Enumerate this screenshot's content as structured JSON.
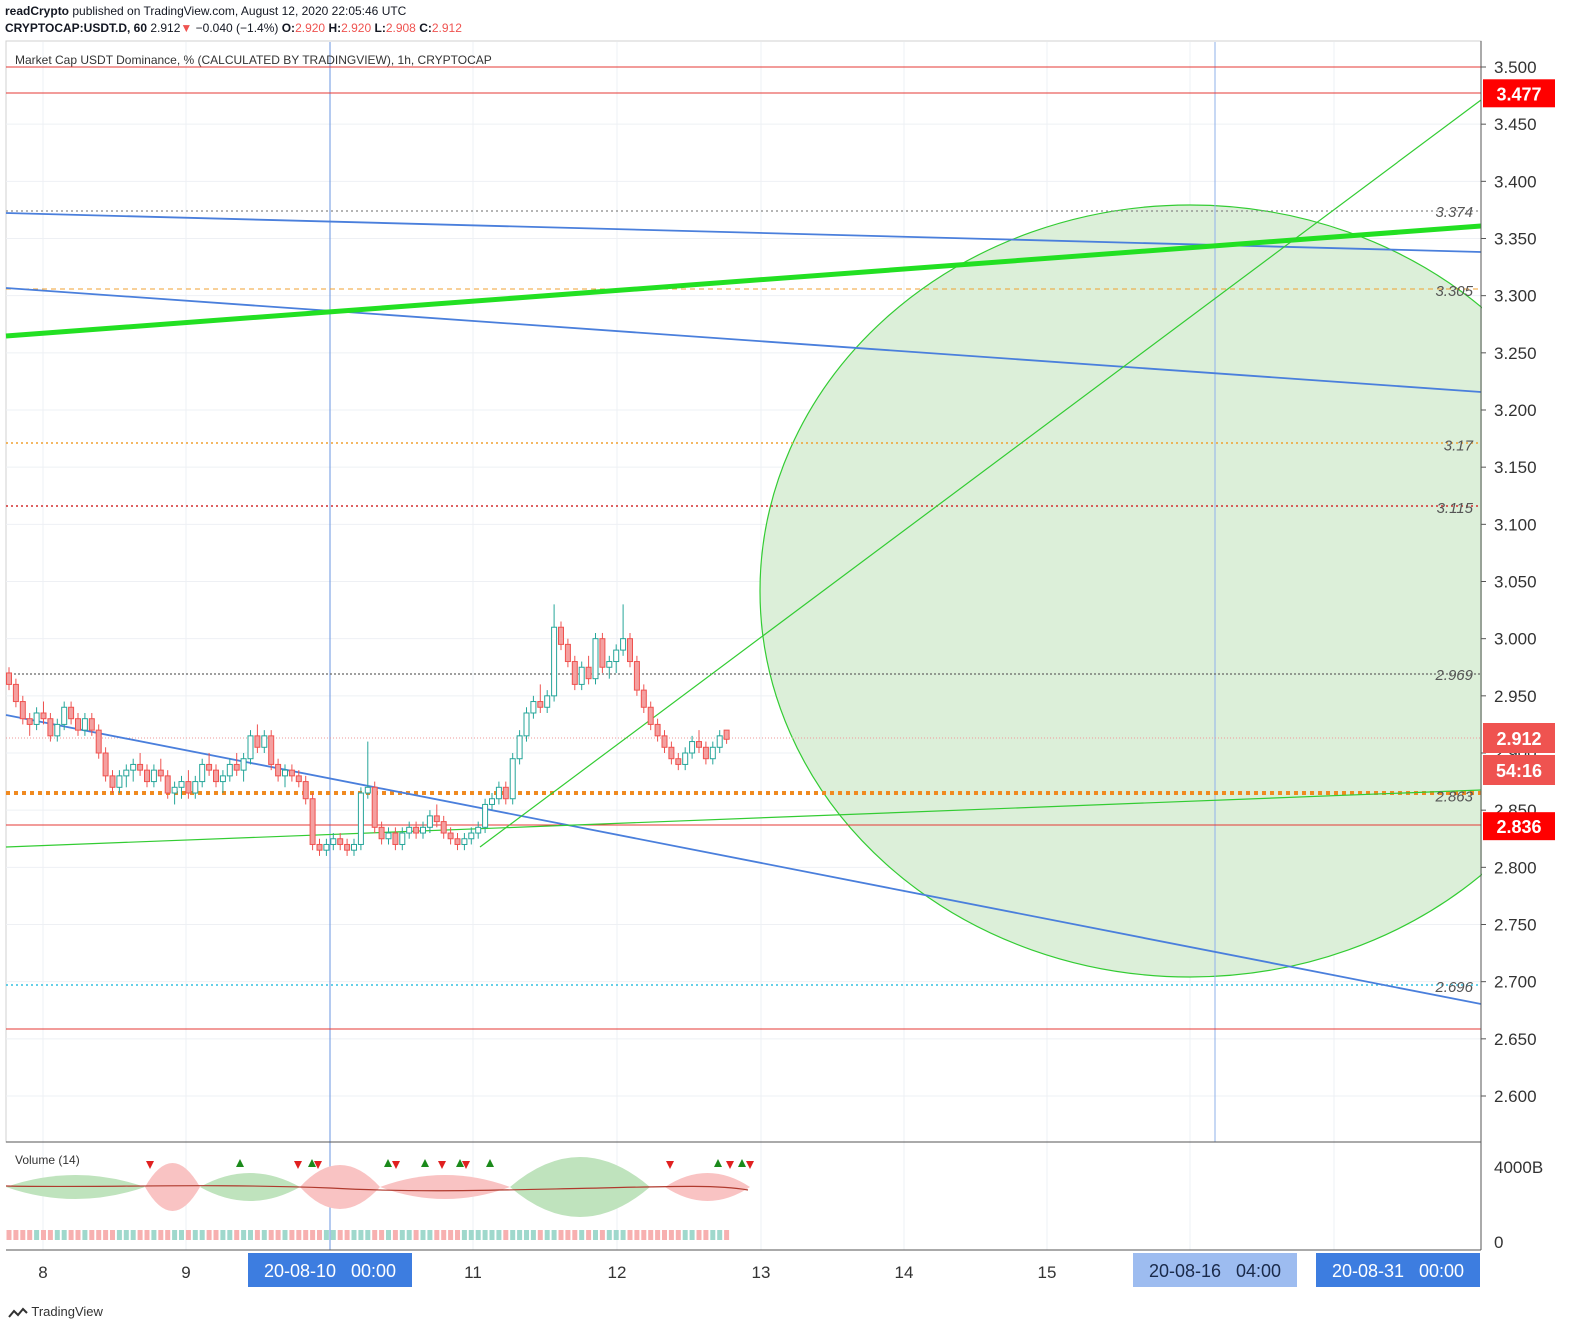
{
  "header": {
    "line1_user": "readCrypto",
    "line1_rest": " published on TradingView.com, August 12, 2020 22:05:46 UTC",
    "symbol": "CRYPTOCAP:USDT.D, 60",
    "last": "2.912",
    "arrow": "▼",
    "change": "−0.040 (−1.4%)",
    "o_label": "O:",
    "o": "2.920",
    "h_label": "H:",
    "h": "2.920",
    "l_label": "L:",
    "l": "2.908",
    "c_label": "C:",
    "c": "2.912"
  },
  "chart_title": "Market Cap USDT Dominance, % (CALCULATED BY TRADINGVIEW), 1h, CRYPTOCAP",
  "colors": {
    "up": "#26a69a",
    "down": "#ef5350",
    "blue": "#4a7fdc",
    "green": "#33cc33",
    "bright_green": "#22e022",
    "red": "#e53935",
    "orange": "#f0a030",
    "dotted_red": "#d32f2f",
    "cyan": "#33c0e0",
    "gray": "#888888"
  },
  "chart_data": {
    "type": "candlestick",
    "title": "Market Cap USDT Dominance, % (CALCULATED BY TRADINGVIEW), 1h, CRYPTOCAP",
    "ylim": [
      2.56,
      3.52
    ],
    "xlim": [
      "2020-08-07 18:00",
      "2020-08-17 10:00"
    ],
    "price_ticks": [
      "3.500",
      "3.450",
      "3.400",
      "3.350",
      "3.300",
      "3.250",
      "3.200",
      "3.150",
      "3.100",
      "3.050",
      "3.000",
      "2.950",
      "2.900",
      "2.850",
      "2.800",
      "2.750",
      "2.700",
      "2.650",
      "2.600"
    ],
    "time_ticks": [
      "8",
      "9",
      "11",
      "12",
      "13",
      "14",
      "15"
    ],
    "last_price": 2.912,
    "countdown": "54:16",
    "date_tags": [
      "20-08-10   00:00",
      "20-08-16   04:00",
      "20-08-31   00:00"
    ],
    "price_tags": [
      {
        "label": "3.477",
        "value": 3.477
      },
      {
        "label": "2.836",
        "value": 2.836
      }
    ],
    "levels": [
      {
        "label": "3.374",
        "value": 3.374,
        "style": "dotted-gray"
      },
      {
        "label": "3.305",
        "value": 3.305,
        "style": "dashed-orange"
      },
      {
        "label": "3.17",
        "value": 3.17,
        "style": "dotted-orange"
      },
      {
        "label": "3.115",
        "value": 3.115,
        "style": "dotted-red"
      },
      {
        "label": "2.969",
        "value": 2.969,
        "style": "dotted-gray"
      },
      {
        "label": "2.863",
        "value": 2.863,
        "style": "thick-dotted-orange"
      },
      {
        "label": "2.696",
        "value": 2.696,
        "style": "dotted-cyan"
      }
    ],
    "red_lines": [
      3.5,
      3.477,
      2.836,
      2.659
    ],
    "candles": [
      [
        2.97,
        2.975,
        2.955,
        2.96
      ],
      [
        2.96,
        2.965,
        2.94,
        2.945
      ],
      [
        2.945,
        2.95,
        2.925,
        2.93
      ],
      [
        2.93,
        2.935,
        2.915,
        2.925
      ],
      [
        2.925,
        2.94,
        2.92,
        2.935
      ],
      [
        2.935,
        2.945,
        2.925,
        2.93
      ],
      [
        2.93,
        2.935,
        2.91,
        2.915
      ],
      [
        2.915,
        2.93,
        2.91,
        2.925
      ],
      [
        2.925,
        2.945,
        2.92,
        2.94
      ],
      [
        2.94,
        2.945,
        2.925,
        2.93
      ],
      [
        2.93,
        2.935,
        2.915,
        2.92
      ],
      [
        2.92,
        2.935,
        2.915,
        2.93
      ],
      [
        2.93,
        2.935,
        2.915,
        2.92
      ],
      [
        2.92,
        2.925,
        2.895,
        2.9
      ],
      [
        2.9,
        2.905,
        2.875,
        2.88
      ],
      [
        2.88,
        2.885,
        2.865,
        2.87
      ],
      [
        2.87,
        2.885,
        2.865,
        2.88
      ],
      [
        2.88,
        2.89,
        2.87,
        2.885
      ],
      [
        2.885,
        2.895,
        2.875,
        2.89
      ],
      [
        2.89,
        2.9,
        2.88,
        2.885
      ],
      [
        2.885,
        2.89,
        2.87,
        2.875
      ],
      [
        2.875,
        2.89,
        2.87,
        2.885
      ],
      [
        2.885,
        2.895,
        2.875,
        2.88
      ],
      [
        2.88,
        2.885,
        2.86,
        2.865
      ],
      [
        2.865,
        2.875,
        2.855,
        2.87
      ],
      [
        2.87,
        2.88,
        2.86,
        2.875
      ],
      [
        2.875,
        2.885,
        2.86,
        2.865
      ],
      [
        2.865,
        2.88,
        2.86,
        2.875
      ],
      [
        2.875,
        2.895,
        2.87,
        2.89
      ],
      [
        2.89,
        2.9,
        2.88,
        2.885
      ],
      [
        2.885,
        2.89,
        2.87,
        2.875
      ],
      [
        2.875,
        2.885,
        2.865,
        2.88
      ],
      [
        2.88,
        2.895,
        2.875,
        2.89
      ],
      [
        2.89,
        2.9,
        2.88,
        2.885
      ],
      [
        2.885,
        2.9,
        2.875,
        2.895
      ],
      [
        2.895,
        2.92,
        2.89,
        2.915
      ],
      [
        2.915,
        2.925,
        2.9,
        2.905
      ],
      [
        2.905,
        2.92,
        2.9,
        2.915
      ],
      [
        2.915,
        2.92,
        2.885,
        2.89
      ],
      [
        2.89,
        2.895,
        2.875,
        2.88
      ],
      [
        2.88,
        2.89,
        2.87,
        2.885
      ],
      [
        2.885,
        2.89,
        2.875,
        2.88
      ],
      [
        2.88,
        2.885,
        2.87,
        2.875
      ],
      [
        2.875,
        2.88,
        2.855,
        2.86
      ],
      [
        2.86,
        2.865,
        2.815,
        2.82
      ],
      [
        2.82,
        2.825,
        2.81,
        2.815
      ],
      [
        2.815,
        2.825,
        2.81,
        2.82
      ],
      [
        2.82,
        2.83,
        2.815,
        2.825
      ],
      [
        2.825,
        2.83,
        2.815,
        2.82
      ],
      [
        2.82,
        2.825,
        2.81,
        2.815
      ],
      [
        2.815,
        2.825,
        2.81,
        2.82
      ],
      [
        2.82,
        2.87,
        2.815,
        2.865
      ],
      [
        2.865,
        2.91,
        2.86,
        2.87
      ],
      [
        2.87,
        2.875,
        2.83,
        2.835
      ],
      [
        2.835,
        2.84,
        2.82,
        2.825
      ],
      [
        2.825,
        2.835,
        2.82,
        2.83
      ],
      [
        2.83,
        2.835,
        2.815,
        2.82
      ],
      [
        2.82,
        2.835,
        2.815,
        2.83
      ],
      [
        2.83,
        2.84,
        2.825,
        2.835
      ],
      [
        2.835,
        2.84,
        2.825,
        2.83
      ],
      [
        2.83,
        2.84,
        2.825,
        2.835
      ],
      [
        2.835,
        2.85,
        2.83,
        2.845
      ],
      [
        2.845,
        2.855,
        2.835,
        2.84
      ],
      [
        2.84,
        2.845,
        2.825,
        2.83
      ],
      [
        2.83,
        2.835,
        2.82,
        2.825
      ],
      [
        2.825,
        2.83,
        2.815,
        2.82
      ],
      [
        2.82,
        2.83,
        2.815,
        2.825
      ],
      [
        2.825,
        2.835,
        2.82,
        2.83
      ],
      [
        2.83,
        2.84,
        2.825,
        2.835
      ],
      [
        2.835,
        2.86,
        2.83,
        2.855
      ],
      [
        2.855,
        2.865,
        2.85,
        2.86
      ],
      [
        2.86,
        2.875,
        2.855,
        2.87
      ],
      [
        2.87,
        2.875,
        2.855,
        2.86
      ],
      [
        2.86,
        2.9,
        2.855,
        2.895
      ],
      [
        2.895,
        2.92,
        2.89,
        2.915
      ],
      [
        2.915,
        2.94,
        2.91,
        2.935
      ],
      [
        2.935,
        2.95,
        2.93,
        2.945
      ],
      [
        2.945,
        2.96,
        2.935,
        2.94
      ],
      [
        2.94,
        2.955,
        2.935,
        2.95
      ],
      [
        2.95,
        3.03,
        2.945,
        3.01
      ],
      [
        3.01,
        3.015,
        2.99,
        2.995
      ],
      [
        2.995,
        3.0,
        2.975,
        2.98
      ],
      [
        2.98,
        2.985,
        2.955,
        2.96
      ],
      [
        2.96,
        2.98,
        2.955,
        2.975
      ],
      [
        2.975,
        2.985,
        2.96,
        2.965
      ],
      [
        2.965,
        3.005,
        2.96,
        3.0
      ],
      [
        3.0,
        3.005,
        2.97,
        2.975
      ],
      [
        2.975,
        2.985,
        2.965,
        2.98
      ],
      [
        2.98,
        2.995,
        2.97,
        2.99
      ],
      [
        2.99,
        3.03,
        2.985,
        3.0
      ],
      [
        3.0,
        3.005,
        2.975,
        2.98
      ],
      [
        2.98,
        2.985,
        2.95,
        2.955
      ],
      [
        2.955,
        2.96,
        2.935,
        2.94
      ],
      [
        2.94,
        2.945,
        2.92,
        2.925
      ],
      [
        2.925,
        2.93,
        2.91,
        2.915
      ],
      [
        2.915,
        2.92,
        2.9,
        2.905
      ],
      [
        2.905,
        2.91,
        2.89,
        2.895
      ],
      [
        2.895,
        2.9,
        2.885,
        2.89
      ],
      [
        2.89,
        2.905,
        2.885,
        2.9
      ],
      [
        2.9,
        2.915,
        2.895,
        2.91
      ],
      [
        2.91,
        2.92,
        2.9,
        2.905
      ],
      [
        2.905,
        2.91,
        2.89,
        2.895
      ],
      [
        2.895,
        2.91,
        2.89,
        2.905
      ],
      [
        2.905,
        2.92,
        2.9,
        2.915
      ],
      [
        2.92,
        2.92,
        2.908,
        2.912
      ]
    ],
    "volume": {
      "label": "Volume (14)",
      "axis_ticks": [
        "4000B",
        "0"
      ]
    }
  },
  "footer": {
    "brand": "TradingView"
  }
}
